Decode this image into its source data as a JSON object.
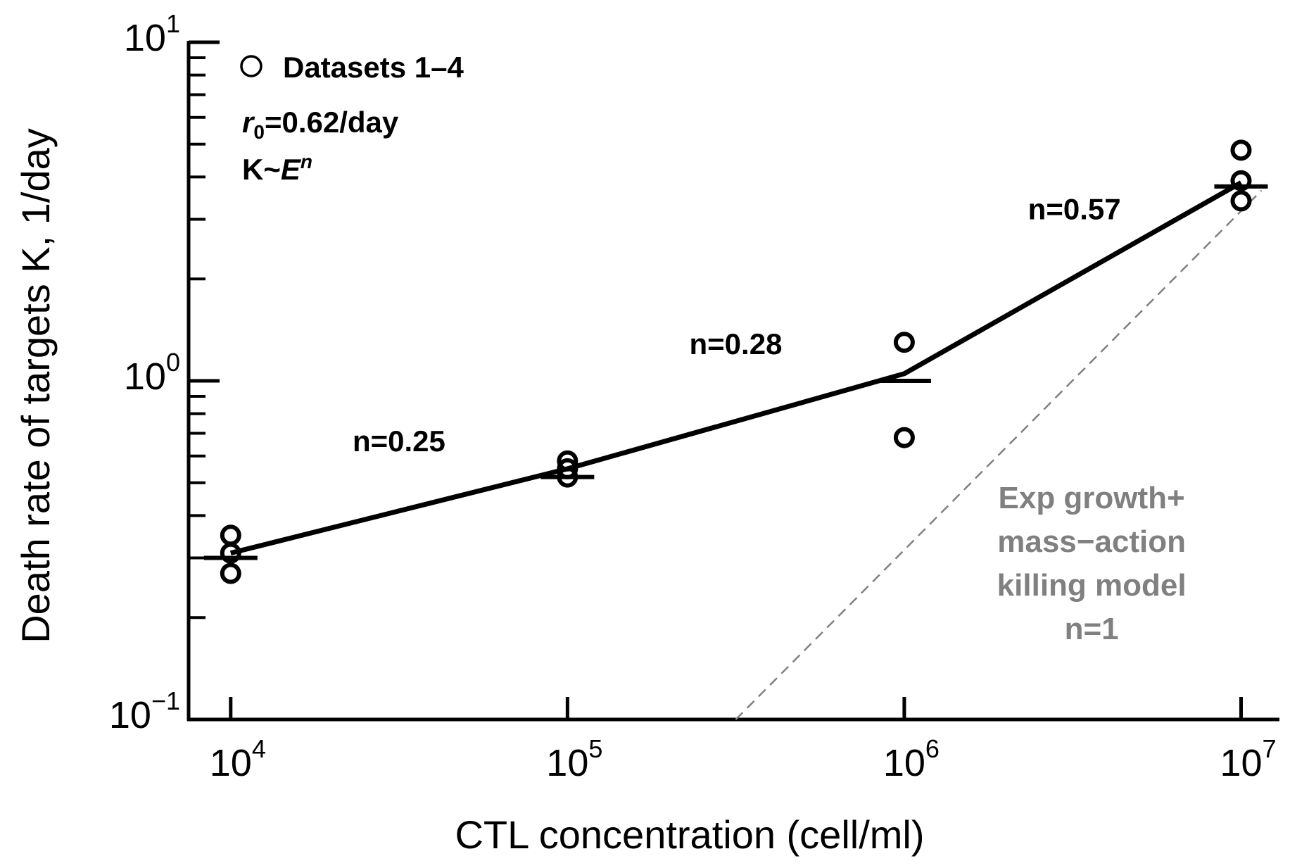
{
  "chart_data": {
    "type": "scatter",
    "x_scale": "log",
    "y_scale": "log",
    "xlabel": "CTL concentration (cell/ml)",
    "ylabel": "Death rate of targets K, 1/day",
    "xlim": [
      7500,
      13000000
    ],
    "ylim": [
      0.1,
      10
    ],
    "x_ticks": [
      {
        "value": 10000,
        "base": "10",
        "exp": "4"
      },
      {
        "value": 100000,
        "base": "10",
        "exp": "5"
      },
      {
        "value": 1000000,
        "base": "10",
        "exp": "6"
      },
      {
        "value": 10000000,
        "base": "10",
        "exp": "7"
      }
    ],
    "y_ticks": [
      {
        "value": 0.1,
        "base": "10",
        "exp": "−1"
      },
      {
        "value": 1,
        "base": "10",
        "exp": "0"
      },
      {
        "value": 10,
        "base": "10",
        "exp": "1"
      }
    ],
    "legend": {
      "label": "Datasets 1–4",
      "r0_symbol": "r",
      "r0_sub": "0",
      "r0_value": "=0.62/day",
      "k_prefix": "K~",
      "k_var": "E",
      "k_exp": "n",
      "position": "top-left"
    },
    "series": [
      {
        "name": "Datasets 1–4",
        "kind": "points",
        "points": [
          {
            "x": 10000,
            "y": 0.35
          },
          {
            "x": 10000,
            "y": 0.31
          },
          {
            "x": 10000,
            "y": 0.27
          },
          {
            "x": 100000,
            "y": 0.58
          },
          {
            "x": 100000,
            "y": 0.55
          },
          {
            "x": 100000,
            "y": 0.52
          },
          {
            "x": 1000000,
            "y": 1.3
          },
          {
            "x": 1000000,
            "y": 0.68
          },
          {
            "x": 10000000,
            "y": 4.8
          },
          {
            "x": 10000000,
            "y": 3.9
          },
          {
            "x": 10000000,
            "y": 3.4
          }
        ]
      },
      {
        "name": "Mean",
        "kind": "mean-markers",
        "points": [
          {
            "x": 10000,
            "y": 0.3
          },
          {
            "x": 100000,
            "y": 0.52
          },
          {
            "x": 1000000,
            "y": 1.0
          },
          {
            "x": 10000000,
            "y": 3.75
          }
        ]
      },
      {
        "name": "Fit K~E^n",
        "kind": "line",
        "points": [
          {
            "x": 10000,
            "y": 0.31
          },
          {
            "x": 100000,
            "y": 0.55
          },
          {
            "x": 1000000,
            "y": 1.05
          },
          {
            "x": 10000000,
            "y": 3.85
          }
        ]
      },
      {
        "name": "Exp growth+ mass-action killing model n=1",
        "kind": "dashed-line",
        "color": "#808080",
        "points": [
          {
            "x": 316000,
            "y": 0.1
          },
          {
            "x": 11500000,
            "y": 3.65
          }
        ]
      }
    ],
    "annotations": [
      {
        "text": "n=0.25",
        "x": 31600,
        "y": 0.62
      },
      {
        "text": "n=0.28",
        "x": 316000,
        "y": 1.2
      },
      {
        "text": "n=0.57",
        "x": 3200000,
        "y": 3.0
      }
    ],
    "model_label": {
      "lines": [
        "Exp growth+",
        "mass−action",
        "killing model",
        "n=1"
      ],
      "x": 3600000,
      "y": 0.42,
      "color": "#808080"
    }
  }
}
